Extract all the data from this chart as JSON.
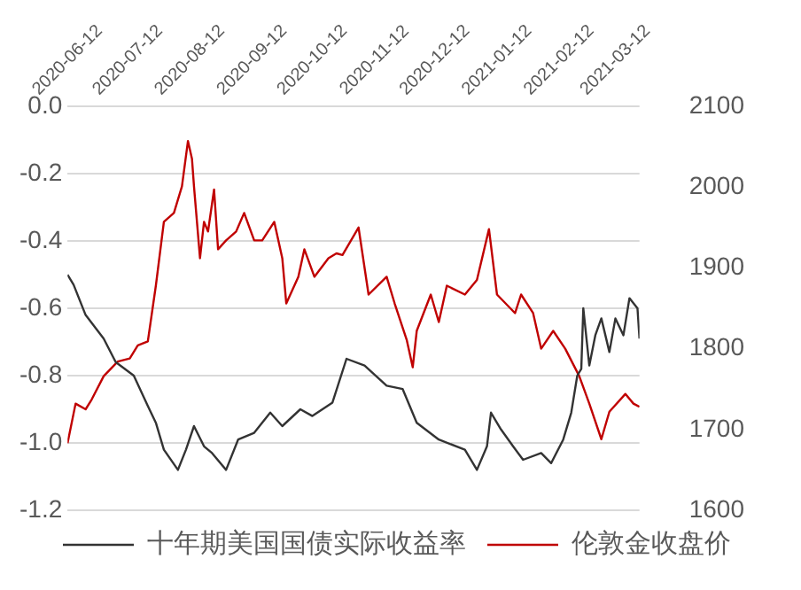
{
  "chart_data": {
    "type": "line",
    "xlim": [
      "2020-06-12",
      "2021-03-24"
    ],
    "xticks": [
      "2020-06-12",
      "2020-07-12",
      "2020-08-12",
      "2020-09-12",
      "2020-10-12",
      "2020-11-12",
      "2020-12-12",
      "2021-01-12",
      "2021-02-12",
      "2021-03-12"
    ],
    "ylim": [
      -1.2,
      0
    ],
    "yticks": [
      -1.2,
      {
        "value": -1,
        "label": "-1.0"
      },
      -0.8,
      -0.6,
      -0.4,
      -0.2,
      {
        "value": 0,
        "label": "0.0"
      }
    ],
    "y2lim": [
      1600,
      2100
    ],
    "y2ticks": [
      1600,
      1700,
      1800,
      1900,
      2000,
      2100
    ],
    "grid": "y",
    "legend": "bottom",
    "marker": "none",
    "line_style": "solid",
    "series": [
      {
        "name": "十年期美国国债实际收益率",
        "color": "#333333",
        "x": [
          "2020-06-12",
          "2020-06-15",
          "2020-06-21",
          "2020-06-30",
          "2020-07-06",
          "2020-07-15",
          "2020-07-22",
          "2020-07-26",
          "2020-07-30",
          "2020-08-06",
          "2020-08-10",
          "2020-08-14",
          "2020-08-19",
          "2020-08-23",
          "2020-08-30",
          "2020-09-05",
          "2020-09-13",
          "2020-09-21",
          "2020-09-27",
          "2020-10-06",
          "2020-10-12",
          "2020-10-22",
          "2020-10-29",
          "2020-11-07",
          "2020-11-18",
          "2020-11-26",
          "2020-12-03",
          "2020-12-14",
          "2020-12-27",
          "2021-01-02",
          "2021-01-07",
          "2021-01-09",
          "2021-01-14",
          "2021-01-20",
          "2021-01-25",
          "2021-02-03",
          "2021-02-08",
          "2021-02-14",
          "2021-02-18",
          "2021-02-21",
          "2021-02-23",
          "2021-02-24",
          "2021-02-27",
          "2021-03-02",
          "2021-03-05",
          "2021-03-09",
          "2021-03-12",
          "2021-03-16",
          "2021-03-19",
          "2021-03-23",
          "2021-03-24"
        ],
        "values": [
          -0.5,
          -0.53,
          -0.62,
          -0.69,
          -0.76,
          -0.8,
          -0.89,
          -0.94,
          -1.02,
          -1.08,
          -1.02,
          -0.95,
          -1.01,
          -1.03,
          -1.08,
          -0.99,
          -0.97,
          -0.91,
          -0.95,
          -0.9,
          -0.92,
          -0.88,
          -0.75,
          -0.77,
          -0.83,
          -0.84,
          -0.94,
          -0.99,
          -1.02,
          -1.08,
          -1.01,
          -0.91,
          -0.96,
          -1.01,
          -1.05,
          -1.03,
          -1.06,
          -0.99,
          -0.91,
          -0.8,
          -0.78,
          -0.6,
          -0.77,
          -0.68,
          -0.63,
          -0.73,
          -0.63,
          -0.68,
          -0.57,
          -0.6,
          -0.69
        ]
      },
      {
        "name": "伦敦金收盘价",
        "color": "#c00000",
        "axis": "y2",
        "x": [
          "2020-06-12",
          "2020-06-16",
          "2020-06-21",
          "2020-06-24",
          "2020-06-30",
          "2020-07-07",
          "2020-07-13",
          "2020-07-17",
          "2020-07-22",
          "2020-07-26",
          "2020-07-30",
          "2020-08-04",
          "2020-08-08",
          "2020-08-11",
          "2020-08-13",
          "2020-08-14",
          "2020-08-17",
          "2020-08-19",
          "2020-08-21",
          "2020-08-24",
          "2020-08-26",
          "2020-08-30",
          "2020-09-04",
          "2020-09-08",
          "2020-09-13",
          "2020-09-17",
          "2020-09-23",
          "2020-09-27",
          "2020-09-29",
          "2020-10-05",
          "2020-10-08",
          "2020-10-13",
          "2020-10-20",
          "2020-10-24",
          "2020-10-27",
          "2020-11-04",
          "2020-11-09",
          "2020-11-18",
          "2020-11-22",
          "2020-11-28",
          "2020-12-01",
          "2020-12-03",
          "2020-12-10",
          "2020-12-14",
          "2020-12-18",
          "2020-12-27",
          "2021-01-02",
          "2021-01-08",
          "2021-01-12",
          "2021-01-21",
          "2021-01-24",
          "2021-01-30",
          "2021-02-03",
          "2021-02-09",
          "2021-02-15",
          "2021-02-22",
          "2021-02-27",
          "2021-03-05",
          "2021-03-09",
          "2021-03-17",
          "2021-03-21",
          "2021-03-24"
        ],
        "values": [
          1683,
          1732,
          1725,
          1737,
          1766,
          1784,
          1788,
          1804,
          1809,
          1878,
          1957,
          1968,
          2001,
          2057,
          2035,
          2001,
          1912,
          1957,
          1945,
          1997,
          1923,
          1934,
          1945,
          1968,
          1934,
          1934,
          1957,
          1912,
          1856,
          1889,
          1923,
          1889,
          1912,
          1918,
          1916,
          1950,
          1867,
          1889,
          1856,
          1811,
          1777,
          1822,
          1867,
          1833,
          1878,
          1867,
          1885,
          1948,
          1867,
          1844,
          1867,
          1844,
          1800,
          1822,
          1800,
          1766,
          1732,
          1688,
          1722,
          1744,
          1732,
          1728
        ]
      }
    ]
  }
}
